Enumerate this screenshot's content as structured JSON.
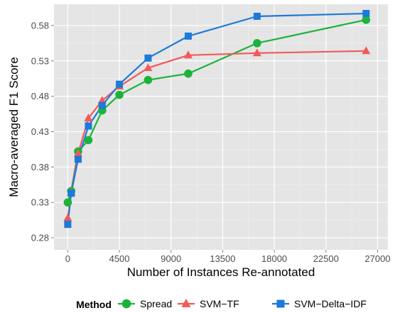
{
  "chart_data": {
    "type": "line",
    "title": "",
    "xlabel": "Number of Instances Re-annotated",
    "ylabel": "Macro-averaged F1 Score",
    "xlim": [
      -1200,
      27900
    ],
    "ylim": [
      0.263,
      0.61
    ],
    "x_ticks": [
      0,
      4500,
      9000,
      13500,
      18000,
      22500,
      27000
    ],
    "x_tick_labels": [
      "0",
      "4500",
      "9000",
      "13500",
      "18000",
      "22500",
      "27000"
    ],
    "y_ticks": [
      0.28,
      0.33,
      0.38,
      0.43,
      0.48,
      0.53,
      0.58
    ],
    "y_tick_labels": [
      "0.28",
      "0.33",
      "0.38",
      "0.43",
      "0.48",
      "0.53",
      "0.58"
    ],
    "grid": true,
    "background": "#e5e5e5",
    "legend": {
      "title": "Method",
      "position": "bottom"
    },
    "series": [
      {
        "name": "Spread",
        "color": "#1bb33a",
        "marker": "circle",
        "x": [
          0,
          300,
          900,
          1800,
          3000,
          4500,
          7000,
          10500,
          16500,
          26000
        ],
        "y": [
          0.33,
          0.346,
          0.402,
          0.418,
          0.46,
          0.482,
          0.503,
          0.512,
          0.555,
          0.588
        ]
      },
      {
        "name": "SVM−TF",
        "color": "#f15a5a",
        "marker": "triangle",
        "x": [
          0,
          300,
          900,
          1800,
          3000,
          4500,
          7000,
          10500,
          16500,
          26000
        ],
        "y": [
          0.308,
          0.344,
          0.399,
          0.449,
          0.474,
          0.494,
          0.52,
          0.538,
          0.541,
          0.544
        ]
      },
      {
        "name": "SVM−Delta−IDF",
        "color": "#1c7ad8",
        "marker": "square",
        "x": [
          0,
          300,
          900,
          1800,
          3000,
          4500,
          7000,
          10500,
          16500,
          26000
        ],
        "y": [
          0.299,
          0.343,
          0.391,
          0.438,
          0.467,
          0.497,
          0.534,
          0.565,
          0.593,
          0.597
        ]
      }
    ]
  }
}
